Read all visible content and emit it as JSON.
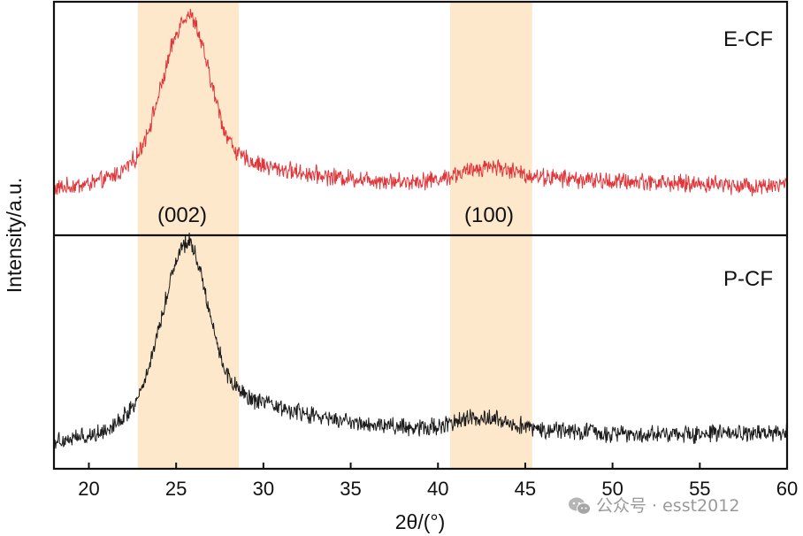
{
  "chart_data": {
    "type": "line",
    "title": "",
    "xlabel": "2θ/(°)",
    "ylabel": "Intensity/a.u.",
    "xlim": [
      18,
      60
    ],
    "xticks": [
      20,
      25,
      30,
      35,
      40,
      45,
      50,
      55,
      60
    ],
    "grid": false,
    "shaded_regions": [
      {
        "label": "(002)",
        "x_range": [
          22.8,
          28.6
        ]
      },
      {
        "label": "(100)",
        "x_range": [
          40.7,
          45.4
        ]
      }
    ],
    "panels": [
      {
        "name": "E-CF",
        "color": "#e0363a",
        "x": [
          18,
          19,
          20,
          21,
          22,
          22.8,
          23.5,
          24.2,
          24.8,
          25.3,
          25.7,
          26.1,
          26.6,
          27.2,
          27.8,
          28.6,
          29.5,
          30.5,
          32,
          34,
          36,
          38,
          40,
          41,
          42,
          43,
          44,
          45,
          46,
          48,
          50,
          52,
          54,
          56,
          58,
          60
        ],
        "y": [
          0.2,
          0.21,
          0.22,
          0.24,
          0.28,
          0.34,
          0.47,
          0.65,
          0.82,
          0.92,
          0.95,
          0.91,
          0.78,
          0.6,
          0.44,
          0.34,
          0.31,
          0.29,
          0.27,
          0.25,
          0.24,
          0.23,
          0.24,
          0.26,
          0.28,
          0.3,
          0.28,
          0.26,
          0.25,
          0.24,
          0.23,
          0.23,
          0.22,
          0.22,
          0.21,
          0.22
        ]
      },
      {
        "name": "P-CF",
        "color": "#1b1b1b",
        "x": [
          18,
          19,
          20,
          21,
          22,
          22.8,
          23.5,
          24.2,
          24.8,
          25.3,
          25.7,
          26.1,
          26.6,
          27.2,
          27.8,
          28.6,
          29.5,
          30.5,
          32,
          34,
          36,
          38,
          40,
          41,
          42,
          43,
          44,
          45,
          46,
          48,
          50,
          52,
          54,
          56,
          58,
          60
        ],
        "y": [
          0.12,
          0.13,
          0.14,
          0.17,
          0.22,
          0.3,
          0.45,
          0.66,
          0.85,
          0.95,
          0.98,
          0.93,
          0.78,
          0.58,
          0.42,
          0.33,
          0.29,
          0.27,
          0.24,
          0.21,
          0.19,
          0.18,
          0.18,
          0.2,
          0.22,
          0.22,
          0.2,
          0.18,
          0.17,
          0.16,
          0.15,
          0.15,
          0.15,
          0.15,
          0.15,
          0.15
        ]
      }
    ]
  },
  "watermark": {
    "icon": "wechat-icon",
    "text": "公众号 · esst2012"
  },
  "colors": {
    "band": "#fde8cc",
    "frame": "#111111"
  }
}
